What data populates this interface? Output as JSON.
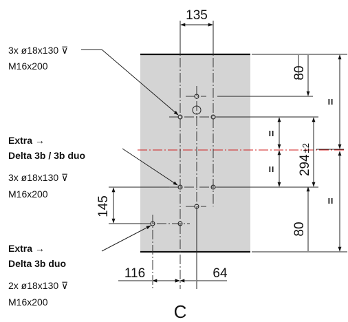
{
  "dimensions": {
    "top_spacing": "135",
    "right_top": "80",
    "right_bottom": "80",
    "height_main": "294",
    "height_tol": "±2",
    "left_spacing": "145",
    "bottom_left": "116",
    "bottom_right": "64",
    "equal_mark": "="
  },
  "annotations": {
    "top_holes": [
      "3x ø18x130 ⊽",
      "M16x200"
    ],
    "middle_title": [
      "Extra →",
      "Delta 3b / 3b duo"
    ],
    "middle_holes": [
      "3x ø18x130 ⊽",
      "M16x200"
    ],
    "bottom_title": [
      "Extra →",
      "Delta 3b duo"
    ],
    "bottom_holes": [
      "2x ø18x130 ⊽",
      "M16x200"
    ]
  },
  "view_label": "C",
  "colors": {
    "panel_fill": "#d4d4d4",
    "center_line": "#d11f1f",
    "line": "#111111"
  }
}
